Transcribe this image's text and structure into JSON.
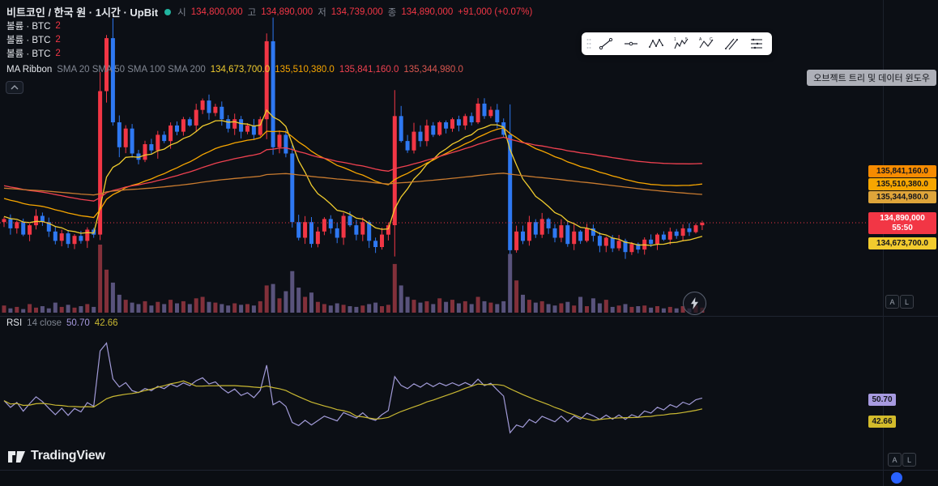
{
  "header": {
    "symbol_title": "비트코인 / 한국 원 · 1시간 · UpBit",
    "ohlc": {
      "open_label": "시",
      "open": "134,800,000",
      "high_label": "고",
      "high": "134,890,000",
      "low_label": "저",
      "low": "134,739,000",
      "close_label": "종",
      "close": "134,890,000",
      "change": "+91,000 (+0.07%)"
    }
  },
  "legends": {
    "volume_rows": [
      {
        "label": "볼륨 · BTC",
        "value": "2"
      },
      {
        "label": "볼륨 · BTC",
        "value": "2"
      },
      {
        "label": "볼륨 · BTC",
        "value": "2"
      }
    ],
    "ma_ribbon": {
      "title": "MA Ribbon",
      "params": "SMA 20 SMA 50 SMA 100 SMA 200",
      "values": [
        {
          "text": "134,673,700.0"
        },
        {
          "text": "135,510,380.0"
        },
        {
          "text": "135,841,160.0"
        },
        {
          "text": "135,344,980.0"
        }
      ]
    },
    "rsi": {
      "title": "RSI",
      "params": "14 close",
      "value": "50.70",
      "ma_value": "42.66"
    }
  },
  "toolbar": {
    "items": [
      "trend-line",
      "horizontal-line",
      "xabcd-pattern",
      "elliott-wave",
      "abc-pattern",
      "parallel-channel",
      "horizontal-rays"
    ]
  },
  "tooltip": "오브젝트 트리 및 데이터 윈도우",
  "price_axis": {
    "badges": [
      {
        "text": "135,841,160.0",
        "bg": "#f78b00"
      },
      {
        "text": "135,510,380.0",
        "bg": "#f7a600"
      },
      {
        "text": "135,344,980.0",
        "bg": "#dfa53a"
      },
      {
        "text": "134,673,700.0",
        "bg": "#f2cb2e"
      }
    ],
    "current": {
      "price": "134,890,000",
      "countdown": "55:50",
      "bg": "#f23645"
    }
  },
  "rsi_axis": {
    "value_badge": {
      "text": "50.70",
      "bg": "#a79ae0"
    },
    "ma_badge": {
      "text": "42.66",
      "bg": "#d3bb2b"
    }
  },
  "buttons": {
    "auto_label": "A",
    "log_label": "L"
  },
  "logo_text": "TradingView",
  "chart_data": {
    "type": "candlestick",
    "symbol": "비트코인 / 한국 원",
    "interval": "1시간",
    "exchange": "UpBit",
    "price_axis_range_m": [
      134.2,
      138.2
    ],
    "current_price_m": 134.89,
    "colors": {
      "up": "#f23645",
      "down": "#2e78f2",
      "vol_up": "rgba(247,82,95,0.5)",
      "vol_down": "rgba(141,128,193,0.6)",
      "rsi": "#a29bd8",
      "rsi_ma": "#c9b832"
    },
    "candles": {
      "first_open": 134.9,
      "closes_m": [
        134.95,
        134.8,
        134.9,
        134.7,
        134.85,
        135.0,
        134.9,
        134.75,
        134.6,
        134.72,
        134.55,
        134.68,
        134.6,
        134.78,
        134.7,
        137.0,
        137.85,
        136.5,
        136.1,
        136.4,
        136.0,
        135.9,
        136.15,
        136.05,
        136.3,
        136.2,
        136.45,
        136.35,
        136.55,
        136.45,
        136.7,
        136.85,
        136.65,
        136.75,
        136.55,
        136.4,
        136.55,
        136.35,
        136.45,
        136.3,
        136.55,
        137.8,
        136.1,
        136.3,
        136.0,
        134.9,
        134.65,
        134.9,
        134.55,
        134.75,
        134.95,
        134.8,
        134.65,
        135.0,
        134.85,
        134.7,
        134.9,
        134.6,
        134.5,
        134.7,
        134.85,
        136.6,
        136.2,
        136.05,
        136.35,
        136.2,
        136.45,
        136.3,
        136.5,
        136.4,
        136.55,
        136.45,
        136.6,
        136.5,
        136.8,
        136.6,
        136.7,
        136.5,
        136.3,
        134.45,
        134.75,
        134.6,
        134.9,
        134.7,
        134.95,
        134.8,
        134.65,
        134.85,
        134.55,
        134.75,
        134.6,
        134.8,
        134.68,
        134.52,
        134.65,
        134.48,
        134.6,
        134.42,
        134.55,
        134.46,
        134.62,
        134.55,
        134.7,
        134.62,
        134.75,
        134.68,
        134.8,
        134.74,
        134.85,
        134.89
      ],
      "volumes": [
        10,
        6,
        8,
        5,
        12,
        7,
        9,
        6,
        14,
        8,
        11,
        7,
        9,
        12,
        8,
        95,
        60,
        42,
        25,
        18,
        14,
        12,
        16,
        10,
        15,
        12,
        18,
        13,
        16,
        12,
        20,
        22,
        15,
        14,
        12,
        10,
        13,
        11,
        12,
        10,
        16,
        38,
        40,
        20,
        30,
        58,
        35,
        22,
        28,
        15,
        12,
        10,
        13,
        11,
        9,
        8,
        10,
        12,
        14,
        9,
        11,
        68,
        38,
        22,
        18,
        14,
        16,
        12,
        20,
        15,
        18,
        13,
        16,
        12,
        22,
        16,
        14,
        12,
        16,
        82,
        45,
        25,
        18,
        14,
        16,
        12,
        10,
        13,
        15,
        10,
        22,
        9,
        20,
        13,
        18,
        8,
        10,
        12,
        8,
        9,
        10,
        7,
        9,
        6,
        8,
        6,
        9,
        6,
        10,
        7
      ]
    },
    "ma_ribbon": {
      "lines": [
        {
          "label": "SMA 20",
          "color": "#f0cc2e",
          "alpha": 0.18,
          "init": 135.0,
          "end": 134.6737
        },
        {
          "label": "SMA 50",
          "color": "#f7a600",
          "alpha": 0.06,
          "init": 135.3,
          "end": 135.51038
        },
        {
          "label": "SMA 100",
          "color": "#ef4150",
          "alpha": 0.03,
          "init": 135.5,
          "end": 135.84116
        },
        {
          "label": "SMA 200",
          "color": "#c97b2f",
          "alpha": 0.012,
          "init": 135.45,
          "end": 135.34498
        }
      ]
    },
    "rsi": {
      "length": 14,
      "source": "close",
      "value": 50.7,
      "ma_value": 42.66
    }
  }
}
